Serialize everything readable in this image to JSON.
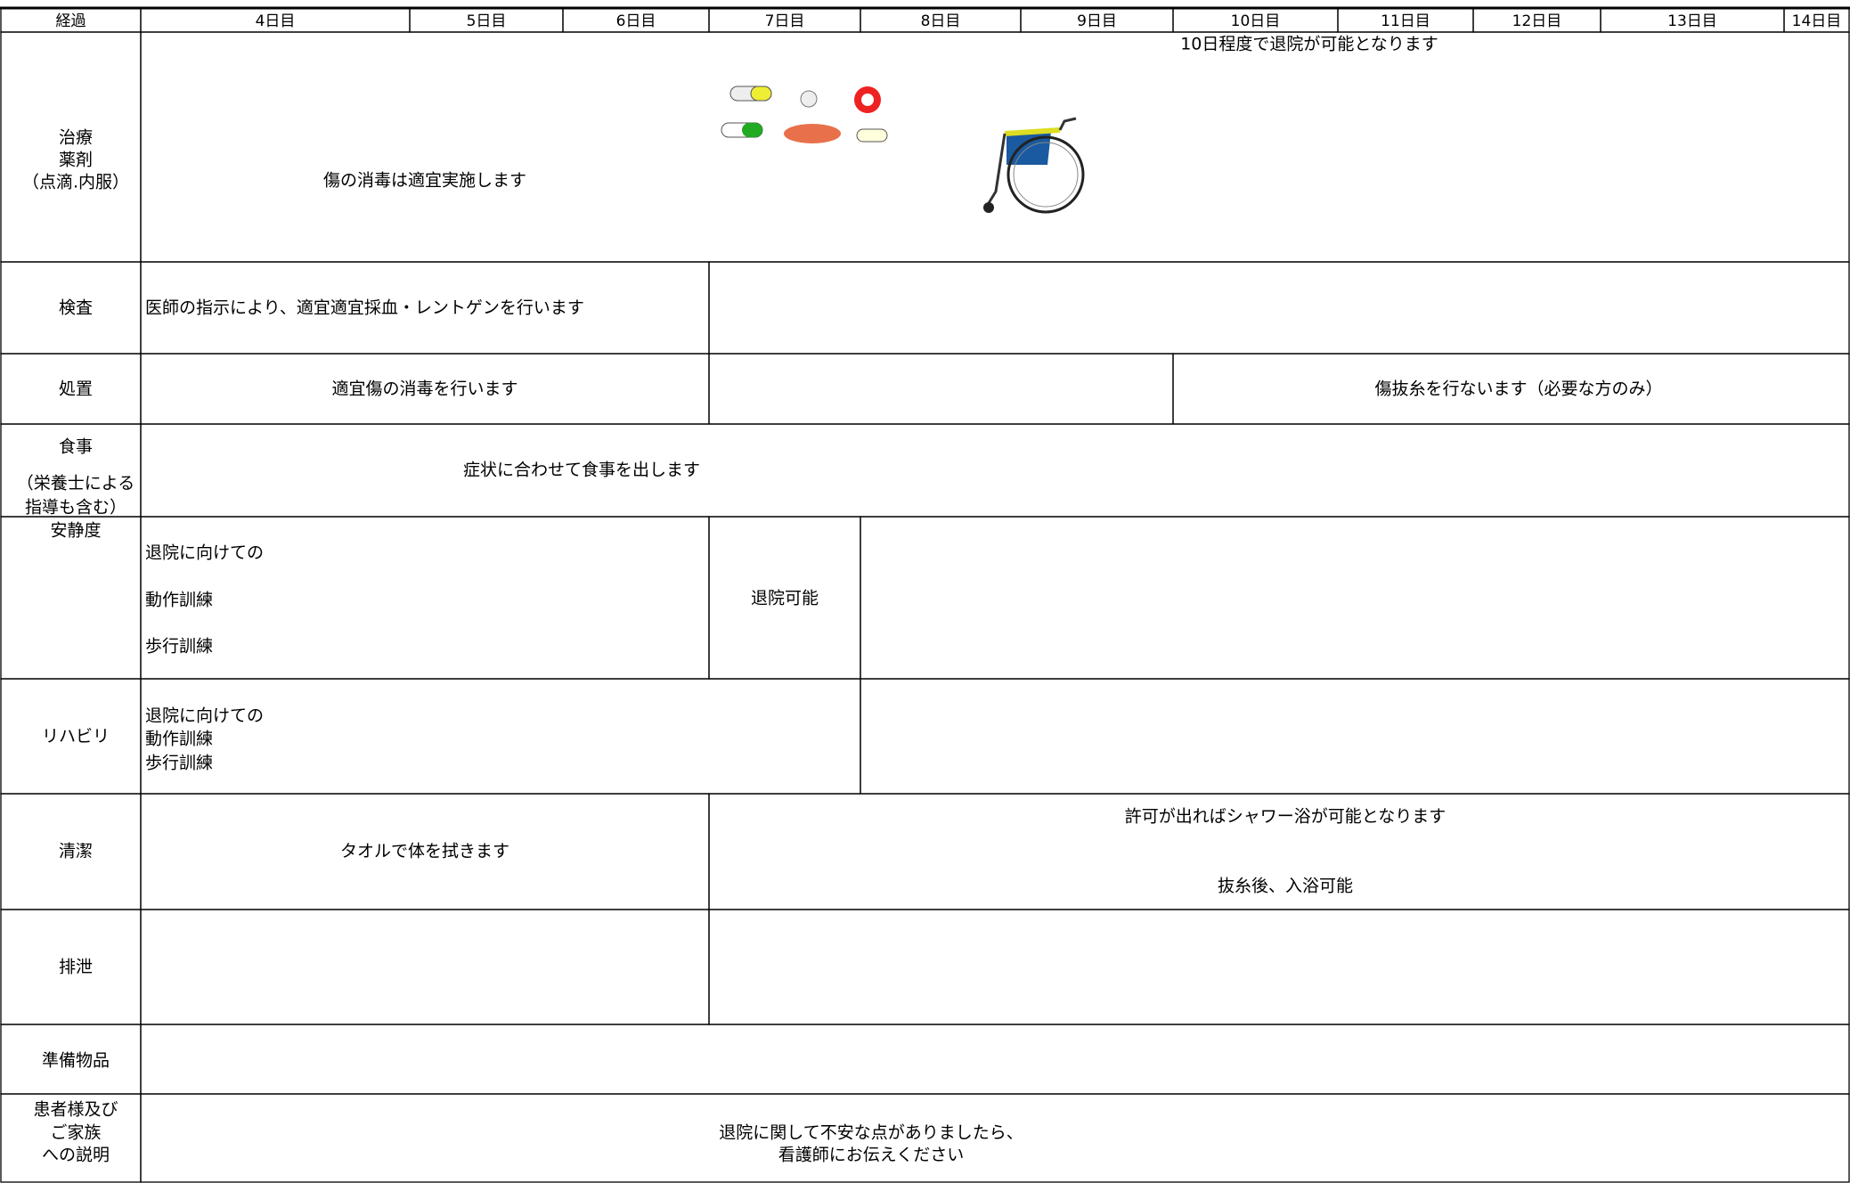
{
  "header": {
    "columns": [
      "経過",
      "4日目",
      "5日目",
      "6日目",
      "7日目",
      "8日目",
      "9日目",
      "10日目",
      "11日目",
      "12日目",
      "13日目",
      "14日目"
    ]
  },
  "rows": [
    {
      "label": [
        "治療",
        "薬剤",
        "（点滴.内服）"
      ],
      "texts": [
        "傷の消毒は適宜実施します",
        "10日程度で退院が可能となります"
      ]
    },
    {
      "label": [
        "検査"
      ],
      "texts": [
        "医師の指示により、適宜適宜採血・レントゲンを行います"
      ]
    },
    {
      "label": [
        "処置"
      ],
      "texts": [
        "適宜傷の消毒を行います",
        "傷抜糸を行ないます（必要な方のみ）"
      ]
    },
    {
      "label": [
        "食事",
        "（栄養士による",
        "指導も含む）"
      ],
      "texts": [
        "症状に合わせて食事を出します"
      ]
    },
    {
      "label": [
        "安静度"
      ],
      "texts": [
        "退院に向けての",
        "動作訓練",
        "歩行訓練",
        "退院可能"
      ]
    },
    {
      "label": [
        "リハビリ"
      ],
      "texts": [
        "退院に向けての",
        "動作訓練",
        "歩行訓練"
      ]
    },
    {
      "label": [
        "清潔"
      ],
      "texts": [
        "タオルで体を拭きます",
        "許可が出ればシャワー浴が可能となります",
        "抜糸後、入浴可能"
      ]
    },
    {
      "label": [
        "排泄"
      ],
      "texts": []
    },
    {
      "label": [
        "準備物品"
      ],
      "texts": []
    },
    {
      "label": [
        "患者様及び",
        "ご家族",
        "への説明"
      ],
      "texts": [
        "退院に関して不安な点がありましたら、",
        "看護師にお伝えください"
      ]
    }
  ]
}
